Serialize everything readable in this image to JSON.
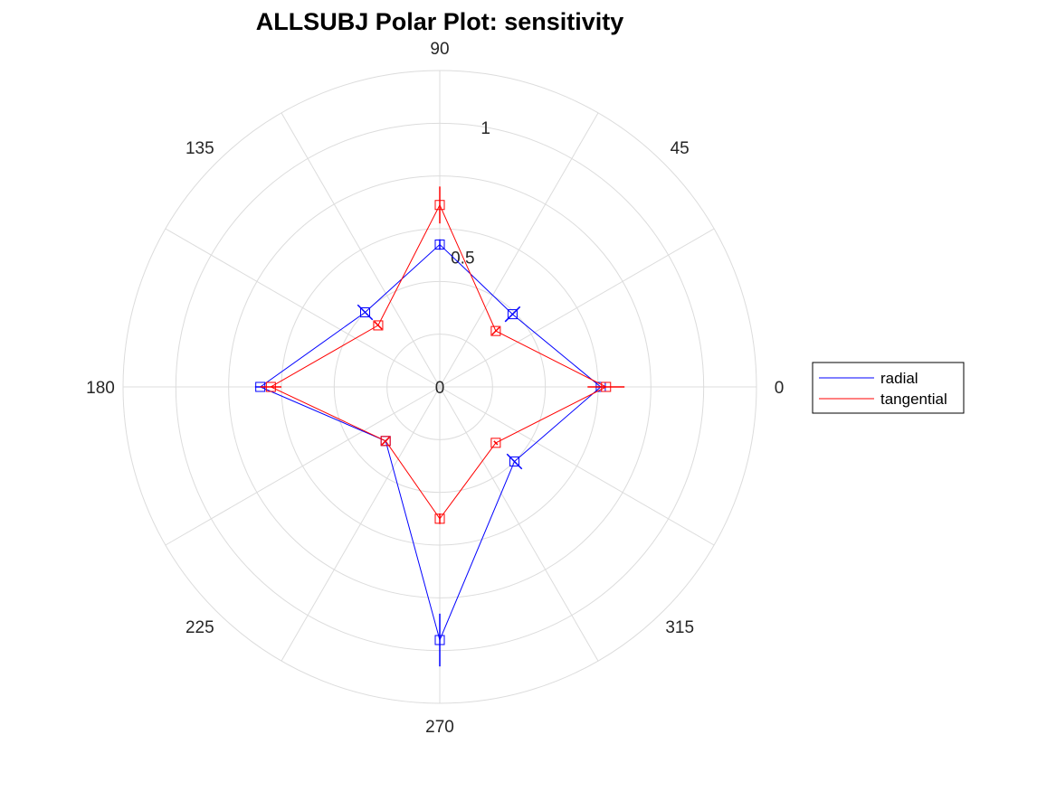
{
  "chart_data": {
    "type": "polar",
    "title": "ALLSUBJ Polar Plot: sensitivity",
    "theta_ticks": [
      "0",
      "45",
      "90",
      "135",
      "180",
      "225",
      "270",
      "315"
    ],
    "theta_tick_values": [
      0,
      45,
      90,
      135,
      180,
      225,
      270,
      315
    ],
    "r_ticks": [
      "0",
      "0.5",
      "1"
    ],
    "r_tick_values": [
      0,
      0.5,
      1
    ],
    "rlim": [
      0,
      1.2
    ],
    "grid": true,
    "legend_position": "right",
    "colors": {
      "radial": "#0000ff",
      "tangential": "#ff0000",
      "grid": "#dcdcdc",
      "legend_border": "#000000"
    },
    "marker": "square",
    "series": [
      {
        "name": "radial",
        "color": "#0000ff",
        "theta": [
          0,
          45,
          90,
          135,
          180,
          225,
          270,
          315
        ],
        "r": [
          0.61,
          0.39,
          0.54,
          0.4,
          0.68,
          0.29,
          0.96,
          0.4
        ],
        "err": [
          0.02,
          0.04,
          0.02,
          0.04,
          0.02,
          0.01,
          0.1,
          0.04
        ]
      },
      {
        "name": "tangential",
        "color": "#ff0000",
        "theta": [
          0,
          45,
          90,
          135,
          180,
          225,
          270,
          315
        ],
        "r": [
          0.63,
          0.3,
          0.69,
          0.33,
          0.64,
          0.29,
          0.5,
          0.3
        ],
        "err": [
          0.07,
          0.02,
          0.07,
          0.02,
          0.04,
          0.02,
          0.02,
          0.01
        ]
      }
    ]
  }
}
